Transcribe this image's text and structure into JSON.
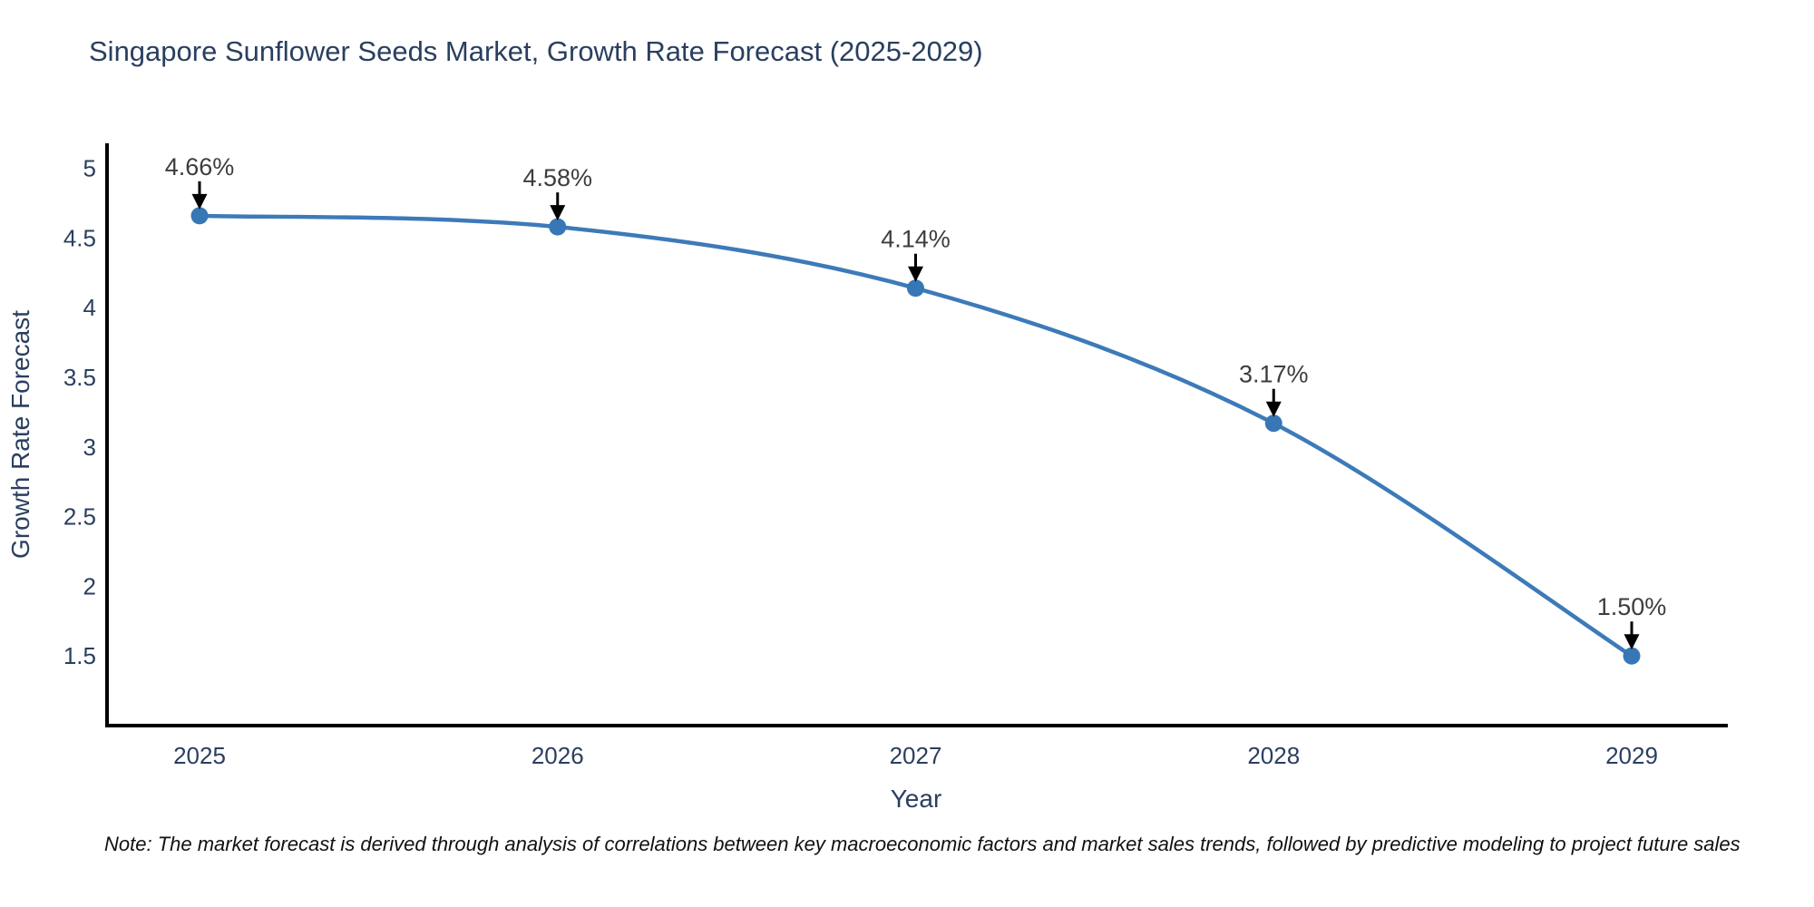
{
  "title": "Singapore Sunflower Seeds Market, Growth Rate Forecast (2025-2029)",
  "note": "Note: The market forecast is derived through analysis of correlations between key macroeconomic factors and market sales trends, followed by predictive modeling to project future sales",
  "chart_data": {
    "type": "line",
    "title": "Singapore Sunflower Seeds Market, Growth Rate Forecast (2025-2029)",
    "xlabel": "Year",
    "ylabel": "Growth Rate Forecast",
    "x": [
      "2025",
      "2026",
      "2027",
      "2028",
      "2029"
    ],
    "values": [
      4.66,
      4.58,
      4.14,
      3.17,
      1.5
    ],
    "point_labels": [
      "4.66%",
      "4.58%",
      "4.14%",
      "3.17%",
      "1.50%"
    ],
    "ytick_values": [
      1.5,
      2,
      2.5,
      3,
      3.5,
      4,
      4.5,
      5
    ],
    "ytick_labels": [
      "1.5",
      "2",
      "2.5",
      "3",
      "3.5",
      "4",
      "4.5",
      "5"
    ],
    "ylim": [
      1.0,
      5.18
    ],
    "grid": false,
    "legend": "none",
    "line_shape": "spline",
    "line_color": "#3d7ab8",
    "marker_color": "#3877b5",
    "axis_color": "#000000",
    "text_color": "#2a3f5f",
    "annotation_color": "#3d3d3d",
    "background_color": "#ffffff"
  }
}
